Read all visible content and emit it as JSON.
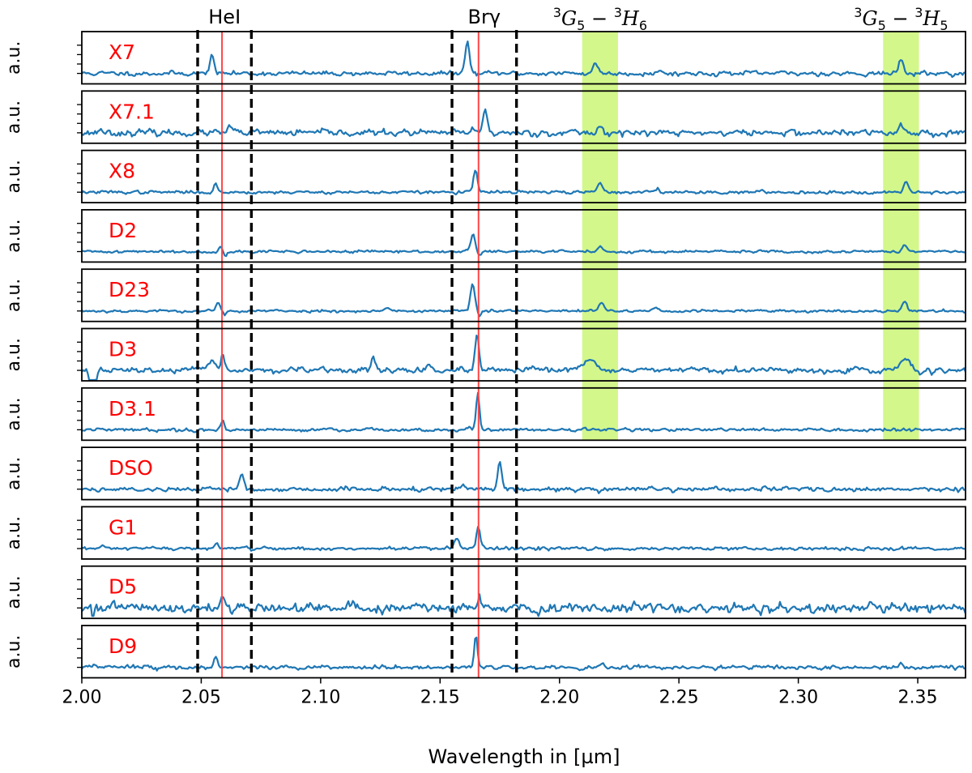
{
  "chart_data": {
    "type": "line",
    "xlabel": "Wavelength in [µm]",
    "ylabel": "a.u.",
    "xlim": [
      2.0,
      2.37
    ],
    "x_ticks": [
      2.0,
      2.05,
      2.1,
      2.15,
      2.2,
      2.25,
      2.3,
      2.35
    ],
    "x_tick_labels": [
      "2.00",
      "2.05",
      "2.10",
      "2.15",
      "2.20",
      "2.25",
      "2.30",
      "2.35"
    ],
    "line_color": "#1f77b4",
    "label_color": "#ff0000",
    "windows": [
      {
        "name": "HeI",
        "label": "HeI",
        "boundaries": [
          2.0485,
          2.071
        ],
        "rest_line": 2.0587
      },
      {
        "name": "Br-gamma",
        "label": "Brγ",
        "boundaries": [
          2.155,
          2.182
        ],
        "rest_line": 2.1661
      }
    ],
    "window_boundary_color": "#000000",
    "rest_line_color": "#ff4444",
    "highlight_bands": [
      {
        "name": "3G5-3H6",
        "range": [
          2.2095,
          2.2245
        ],
        "label_parts": [
          "3",
          "G",
          "5",
          " − ",
          "3",
          "H",
          "6"
        ]
      },
      {
        "name": "3G5-3H5",
        "range": [
          2.3355,
          2.3505
        ],
        "label_parts": [
          "3",
          "G",
          "5",
          " − ",
          "3",
          "H",
          "5"
        ]
      }
    ],
    "highlight_color": "#c8f56e",
    "highlight_alpha": 0.8,
    "panel_highlight_count": 7,
    "series": [
      {
        "name": "X7",
        "noise": 0.05,
        "seed": 11,
        "peaks": [
          [
            2.0544,
            0.55,
            0.0008
          ],
          [
            2.1614,
            0.85,
            0.0009
          ],
          [
            2.215,
            0.3,
            0.001
          ],
          [
            2.343,
            0.35,
            0.001
          ],
          [
            2.242,
            0.1,
            0.0006
          ]
        ]
      },
      {
        "name": "X7.1",
        "noise": 0.07,
        "seed": 23,
        "peaks": [
          [
            2.062,
            0.18,
            0.0008
          ],
          [
            2.1688,
            0.62,
            0.0009
          ],
          [
            2.164,
            0.12,
            0.0006
          ],
          [
            2.217,
            0.18,
            0.001
          ],
          [
            2.343,
            0.22,
            0.001
          ],
          [
            2.008,
            0.12,
            0.0008
          ]
        ]
      },
      {
        "name": "X8",
        "noise": 0.035,
        "seed": 37,
        "peaks": [
          [
            2.056,
            0.22,
            0.0007
          ],
          [
            2.1648,
            0.62,
            0.0008
          ],
          [
            2.217,
            0.25,
            0.001
          ],
          [
            2.241,
            0.14,
            0.0007
          ],
          [
            2.345,
            0.3,
            0.001
          ]
        ]
      },
      {
        "name": "D2",
        "noise": 0.03,
        "seed": 41,
        "peaks": [
          [
            2.058,
            0.15,
            0.0007
          ],
          [
            2.1638,
            0.5,
            0.0009
          ],
          [
            2.217,
            0.15,
            0.001
          ],
          [
            2.3445,
            0.18,
            0.0011
          ]
        ],
        "dips": [
          [
            2.06,
            0.1,
            0.0006
          ],
          [
            2.1665,
            0.12,
            0.0007
          ]
        ]
      },
      {
        "name": "D23",
        "noise": 0.03,
        "seed": 53,
        "peaks": [
          [
            2.057,
            0.22,
            0.0008
          ],
          [
            2.1636,
            0.75,
            0.0009
          ],
          [
            2.128,
            0.08,
            0.0012
          ],
          [
            2.2175,
            0.22,
            0.001
          ],
          [
            2.24,
            0.12,
            0.0008
          ],
          [
            2.3445,
            0.26,
            0.0011
          ]
        ],
        "dips": [
          [
            2.06,
            0.12,
            0.0006
          ],
          [
            2.1665,
            0.18,
            0.0006
          ]
        ]
      },
      {
        "name": "D3",
        "noise": 0.06,
        "seed": 67,
        "peaks": [
          [
            2.0548,
            0.25,
            0.0015
          ],
          [
            2.059,
            0.45,
            0.0008
          ],
          [
            2.122,
            0.38,
            0.0008
          ],
          [
            2.1655,
            0.9,
            0.0008
          ],
          [
            2.213,
            0.28,
            0.003
          ],
          [
            2.3445,
            0.3,
            0.002
          ],
          [
            2.145,
            0.1,
            0.001
          ]
        ],
        "dips": [
          [
            2.004,
            0.45,
            0.0008
          ],
          [
            2.006,
            0.3,
            0.0006
          ]
        ]
      },
      {
        "name": "D3.1",
        "noise": 0.035,
        "seed": 79,
        "peaks": [
          [
            2.059,
            0.25,
            0.0007
          ],
          [
            2.1658,
            1.0,
            0.0007
          ],
          [
            2.162,
            0.08,
            0.0008
          ],
          [
            2.21,
            0.06,
            0.0008
          ]
        ]
      },
      {
        "name": "DSO",
        "noise": 0.05,
        "seed": 89,
        "peaks": [
          [
            2.067,
            0.45,
            0.0009
          ],
          [
            2.175,
            0.8,
            0.0008
          ],
          [
            2.16,
            0.1,
            0.0008
          ]
        ]
      },
      {
        "name": "G1",
        "noise": 0.04,
        "seed": 97,
        "peaks": [
          [
            2.0565,
            0.15,
            0.0008
          ],
          [
            2.157,
            0.28,
            0.001
          ],
          [
            2.166,
            0.55,
            0.0008
          ]
        ]
      },
      {
        "name": "D5",
        "noise": 0.11,
        "seed": 101,
        "peaks": [
          [
            2.059,
            0.35,
            0.0008
          ],
          [
            2.1665,
            0.45,
            0.0008
          ],
          [
            2.006,
            0.2,
            0.0006
          ]
        ],
        "dips": [
          [
            2.005,
            0.3,
            0.0006
          ]
        ]
      },
      {
        "name": "D9",
        "noise": 0.045,
        "seed": 113,
        "peaks": [
          [
            2.056,
            0.28,
            0.0008
          ],
          [
            2.165,
            0.85,
            0.0007
          ],
          [
            2.218,
            0.14,
            0.0008
          ],
          [
            2.343,
            0.12,
            0.0008
          ]
        ]
      }
    ]
  }
}
